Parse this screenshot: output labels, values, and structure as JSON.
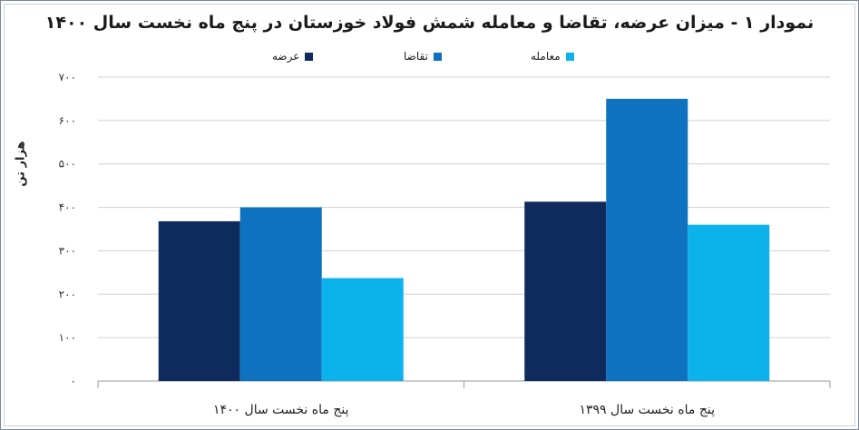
{
  "chart_data": {
    "type": "bar",
    "title": "نمودار ۱ - میزان عرضه، تقاضا و معامله شمش فولاد خوزستان در پنج ماه نخست سال ۱۴۰۰",
    "ylabel": "هزار تن",
    "xlabel": "",
    "categories": [
      "پنج ماه نخست سال ۱۳۹۹",
      "پنج ماه نخست سال ۱۴۰۰"
    ],
    "series": [
      {
        "name": "عرضه",
        "color": "#0f2b5e",
        "values": [
          413,
          368
        ]
      },
      {
        "name": "تقاضا",
        "color": "#0e72c1",
        "values": [
          650,
          400
        ]
      },
      {
        "name": "معامله",
        "color": "#0cb2ec",
        "values": [
          360,
          237
        ]
      }
    ],
    "ylim": [
      0,
      700
    ],
    "yticks": [
      0,
      100,
      200,
      300,
      400,
      500,
      600,
      700
    ],
    "ytick_labels": [
      "۰",
      "۱۰۰",
      "۲۰۰",
      "۳۰۰",
      "۴۰۰",
      "۵۰۰",
      "۶۰۰",
      "۷۰۰"
    ],
    "grid": true,
    "legend_position": "top"
  }
}
